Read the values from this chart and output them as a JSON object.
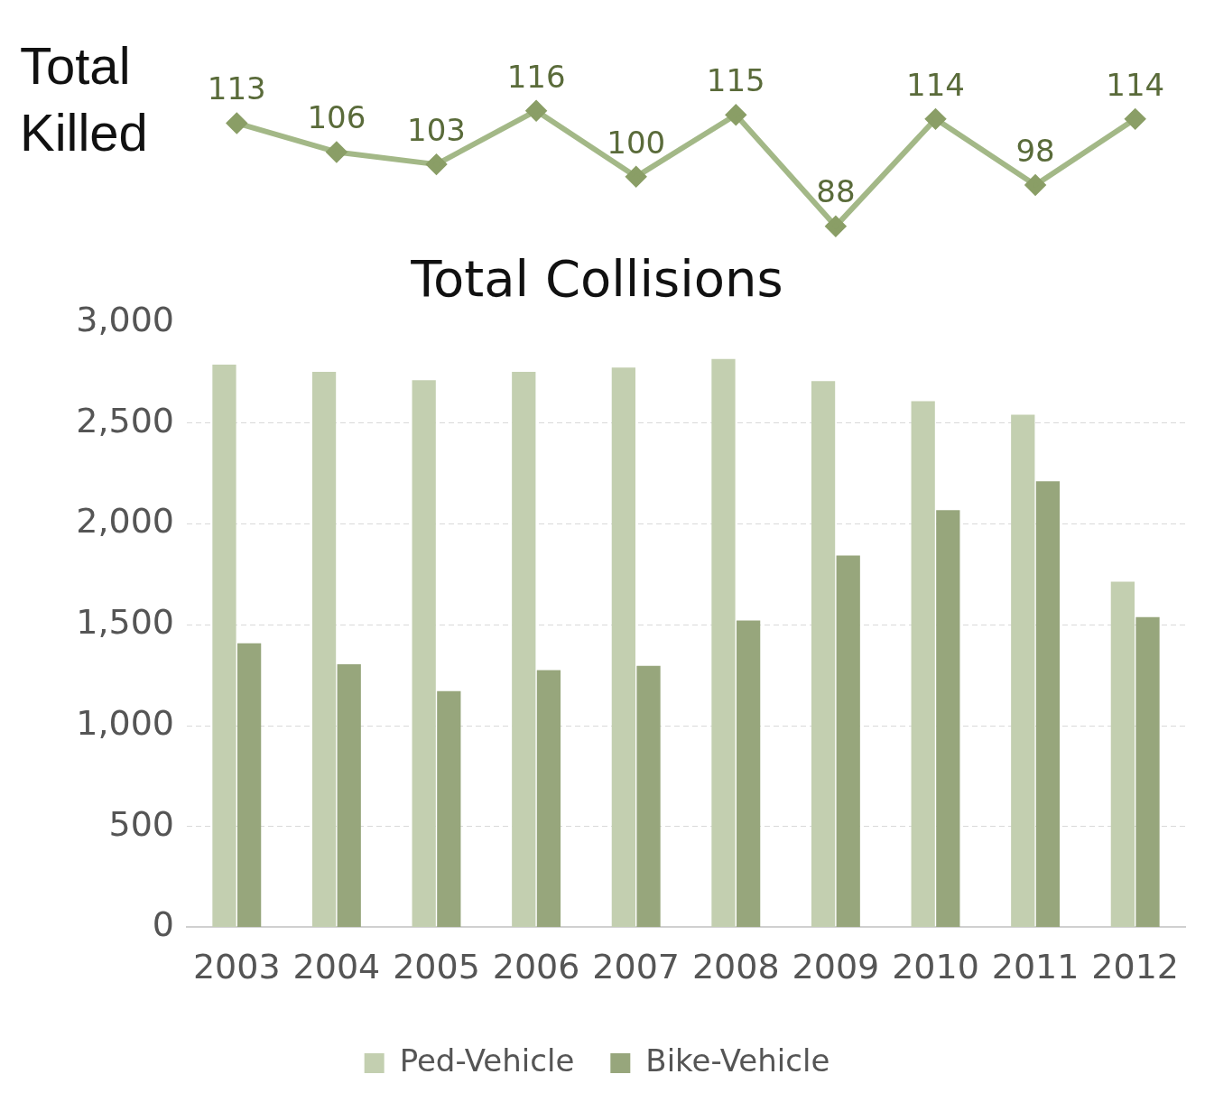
{
  "chart_data": [
    {
      "type": "line",
      "title": "Total Killed",
      "categories": [
        "2003",
        "2004",
        "2005",
        "2006",
        "2007",
        "2008",
        "2009",
        "2010",
        "2011",
        "2012"
      ],
      "series": [
        {
          "color": "#a3b887",
          "values": [
            113,
            106,
            103,
            116,
            100,
            115,
            88,
            114,
            98,
            114
          ]
        }
      ],
      "marker": "diamond",
      "data_labels": true,
      "tick_labels": false,
      "grid": false,
      "legend": false
    },
    {
      "type": "bar",
      "title": "Total Collisions",
      "categories": [
        "2003",
        "2004",
        "2005",
        "2006",
        "2007",
        "2008",
        "2009",
        "2010",
        "2011",
        "2012"
      ],
      "series": [
        {
          "name": "Ped-Vehicle",
          "color": "#c3cfb0",
          "values": [
            2790,
            2755,
            2713,
            2755,
            2776,
            2818,
            2709,
            2609,
            2542,
            1714
          ]
        },
        {
          "name": "Bike-Vehicle",
          "color": "#97a67c",
          "values": [
            1409,
            1304,
            1171,
            1275,
            1296,
            1522,
            1844,
            2069,
            2212,
            1538
          ]
        }
      ],
      "ylim": [
        0,
        3000
      ],
      "yticks": [
        {
          "value": 0,
          "label": "0"
        },
        {
          "value": 500,
          "label": "500"
        },
        {
          "value": 1000,
          "label": "1,000"
        },
        {
          "value": 1500,
          "label": "1,500"
        },
        {
          "value": 2000,
          "label": "2,000"
        },
        {
          "value": 2500,
          "label": "2,500"
        },
        {
          "value": 3000,
          "label": "3,000"
        }
      ],
      "grid": "y",
      "legend": "bottom"
    }
  ]
}
